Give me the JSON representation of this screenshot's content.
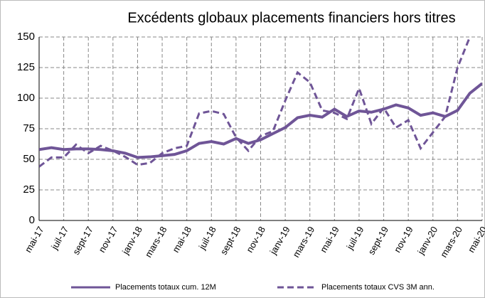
{
  "chart_data": {
    "type": "line",
    "title": "Excédents globaux placements financiers hors titres",
    "categories": [
      "mai-17",
      null,
      "juil-17",
      null,
      "sept-17",
      null,
      "nov-17",
      null,
      "janv-18",
      null,
      "mars-18",
      null,
      "mai-18",
      null,
      "juil-18",
      null,
      "sept-18",
      null,
      "nov-18",
      null,
      "janv-19",
      null,
      "mars-19",
      null,
      "mai-19",
      null,
      "juil-19",
      null,
      "sept-19",
      null,
      "nov-19",
      null,
      "janv-20",
      null,
      "mars-20",
      null,
      "mai-20"
    ],
    "series": [
      {
        "name": "Placements totaux cum. 12M",
        "color": "#6f5597",
        "dash": false,
        "values": [
          58,
          59.5,
          58,
          58.5,
          58.5,
          58,
          57,
          55,
          51.5,
          52,
          53,
          54,
          57,
          63,
          64.5,
          62.5,
          67,
          63,
          66,
          71,
          76,
          84,
          86,
          84.5,
          91,
          85,
          89.5,
          88.5,
          91,
          94.5,
          92,
          86,
          88,
          85,
          90,
          104,
          112
        ]
      },
      {
        "name": "Placements totaux CVS 3M ann.",
        "color": "#6f5597",
        "dash": true,
        "values": [
          44,
          51.5,
          51.5,
          62,
          55,
          61,
          57,
          52,
          45.5,
          47,
          55,
          59,
          61,
          87.5,
          89.5,
          87,
          68,
          57,
          69,
          73,
          98,
          121,
          113,
          90,
          88,
          83,
          108,
          79,
          92,
          76,
          82,
          59,
          72,
          85,
          125,
          150,
          165
        ]
      }
    ],
    "ylim": [
      0,
      150
    ],
    "yticks": [
      0,
      25,
      50,
      75,
      100,
      125,
      150
    ],
    "grid": true
  }
}
